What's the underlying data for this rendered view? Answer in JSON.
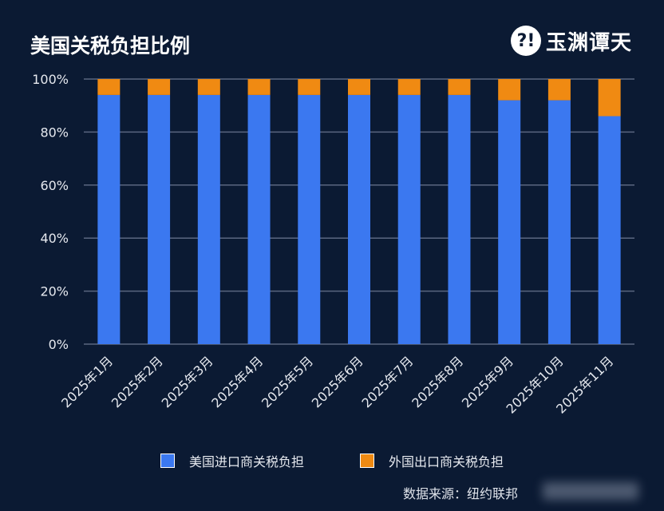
{
  "title": "美国关税负担比例",
  "logo": {
    "text": "玉渊谭天",
    "mark": "?!"
  },
  "source": "数据来源：纽约联邦",
  "colors": {
    "background": "#0b1a33",
    "us": "#3b78f0",
    "foreign": "#f08a12",
    "grid": "#5a6680"
  },
  "chart_data": {
    "type": "bar",
    "stacked": true,
    "categories": [
      "2025年1月",
      "2025年2月",
      "2025年3月",
      "2025年4月",
      "2025年5月",
      "2025年6月",
      "2025年7月",
      "2025年8月",
      "2025年9月",
      "2025年10月",
      "2025年11月"
    ],
    "series": [
      {
        "name": "美国进口商关税负担",
        "color": "#3b78f0",
        "values": [
          94,
          94,
          94,
          94,
          94,
          94,
          94,
          94,
          92,
          92,
          86
        ]
      },
      {
        "name": "外国出口商关税负担",
        "color": "#f08a12",
        "values": [
          6,
          6,
          6,
          6,
          6,
          6,
          6,
          6,
          8,
          8,
          14
        ]
      }
    ],
    "yticks": [
      "0%",
      "20%",
      "40%",
      "60%",
      "80%",
      "100%"
    ],
    "ylim": [
      0,
      100
    ],
    "grid": true,
    "legend": "bottom"
  }
}
